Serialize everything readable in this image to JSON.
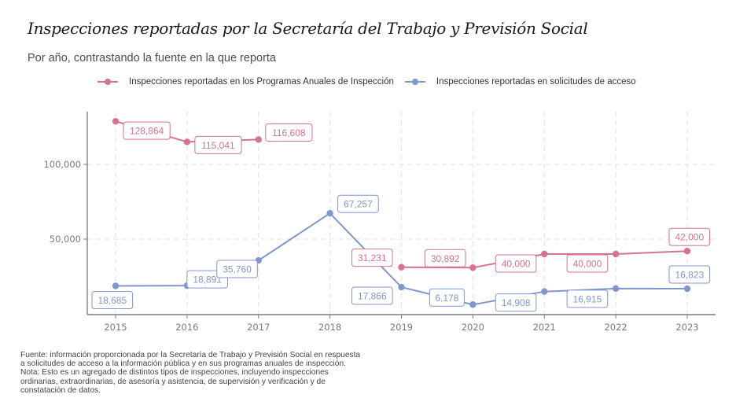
{
  "title": "Inspecciones reportadas por la Secretaría del Trabajo y Previsión Social",
  "subtitle": "Por año, contrastando la fuente en la que reporta",
  "colors": {
    "programas": "#d4728f",
    "solicitudes": "#8197cc",
    "axis": "#7f7f7f",
    "grid": "#e3e3e3"
  },
  "legend": [
    {
      "label": "Inspecciones reportadas en los Programas Anuales de Inspección",
      "series": "programas"
    },
    {
      "label": "Inspecciones reportadas en solicitudes de acceso",
      "series": "solicitudes"
    }
  ],
  "footer": [
    "Fuente: información proporcionada por la Secretaría de Trabajo y Previsión Social en respuesta",
    "a solicitudes de acceso a la información pública y en sus programas anuales de inspección.",
    "Nota: Esto es un agregado de distintos tipos de inspecciones, incluyendo inspecciones",
    "ordinarias, extraordinarias, de asesoría y asistencia, de supervisión y verificación y de",
    "constatación de datos."
  ],
  "chart_data": {
    "type": "line",
    "title": "Inspecciones reportadas por la Secretaría del Trabajo y Previsión Social",
    "subtitle": "Por año, contrastando la fuente en la que reporta",
    "xlabel": "",
    "ylabel": "",
    "x": [
      2015,
      2016,
      2017,
      2018,
      2019,
      2020,
      2021,
      2022,
      2023
    ],
    "x_ticks": [
      "2015",
      "2016",
      "2017",
      "2018",
      "2019",
      "2020",
      "2021",
      "2022",
      "2023"
    ],
    "y_ticks": [
      {
        "value": 50000,
        "label": "50,000"
      },
      {
        "value": 100000,
        "label": "100,000"
      }
    ],
    "ylim": [
      0,
      140000
    ],
    "xlim": [
      2014.6,
      2023.4
    ],
    "grid": true,
    "legend_position": "top",
    "series": [
      {
        "key": "programas",
        "name": "Inspecciones reportadas en los Programas Anuales de Inspección",
        "points": [
          {
            "x": 2015,
            "y": 128864
          },
          {
            "x": 2016,
            "y": 115041
          },
          {
            "x": 2017,
            "y": 116608
          },
          {
            "x": 2019,
            "y": 31231
          },
          {
            "x": 2020,
            "y": 30892
          },
          {
            "x": 2021,
            "y": 40000
          },
          {
            "x": 2022,
            "y": 40000
          },
          {
            "x": 2023,
            "y": 42000
          }
        ],
        "segments": [
          [
            2015,
            2016,
            2017
          ],
          [
            2019,
            2020,
            2021,
            2022,
            2023
          ]
        ],
        "labels": [
          "128,864",
          "115,041",
          "116,608",
          "31,231",
          "30,892",
          "40,000",
          "40,000",
          "42,000"
        ]
      },
      {
        "key": "solicitudes",
        "name": "Inspecciones reportadas en solicitudes de acceso",
        "points": [
          {
            "x": 2015,
            "y": 18685
          },
          {
            "x": 2016,
            "y": 18891
          },
          {
            "x": 2017,
            "y": 35760
          },
          {
            "x": 2018,
            "y": 67257
          },
          {
            "x": 2019,
            "y": 17866
          },
          {
            "x": 2020,
            "y": 6178
          },
          {
            "x": 2021,
            "y": 14908
          },
          {
            "x": 2022,
            "y": 16915
          },
          {
            "x": 2023,
            "y": 16823
          }
        ],
        "segments": [
          [
            2015,
            2016,
            2017,
            2018,
            2019,
            2020,
            2021,
            2022,
            2023
          ]
        ],
        "labels": [
          "18,685",
          "18,891",
          "35,760",
          "67,257",
          "17,866",
          "6,178",
          "14,908",
          "16,915",
          "16,823"
        ]
      }
    ]
  }
}
